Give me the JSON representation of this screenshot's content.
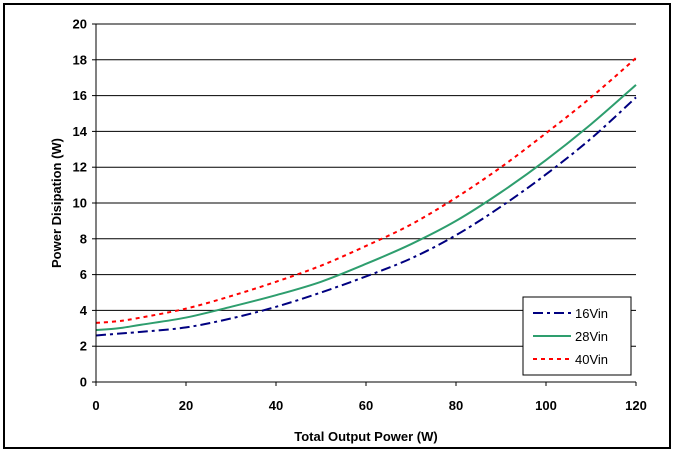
{
  "chart_data": {
    "type": "line",
    "title": "",
    "xlabel": "Total Output Power (W)",
    "ylabel": "Power Disipation (W)",
    "xlim": [
      0,
      120
    ],
    "ylim": [
      0,
      20
    ],
    "x_ticks": [
      "0",
      "20",
      "40",
      "60",
      "80",
      "100",
      "120"
    ],
    "y_ticks": [
      "0",
      "2",
      "4",
      "6",
      "8",
      "10",
      "12",
      "14",
      "16",
      "18",
      "20"
    ],
    "grid": "horizontal",
    "legend_position": "bottom-right",
    "series": [
      {
        "name": "16Vin",
        "color": "#000080",
        "style": "dash-dot",
        "x": [
          0,
          5,
          10,
          20,
          30,
          40,
          50,
          60,
          70,
          80,
          90,
          100,
          110,
          120
        ],
        "y": [
          2.6,
          2.7,
          2.8,
          3.05,
          3.55,
          4.2,
          5.0,
          5.9,
          6.9,
          8.2,
          9.8,
          11.6,
          13.6,
          15.9
        ]
      },
      {
        "name": "28Vin",
        "color": "#2e9e6e",
        "style": "solid",
        "x": [
          0,
          5,
          10,
          20,
          30,
          40,
          50,
          60,
          70,
          80,
          90,
          100,
          110,
          120
        ],
        "y": [
          2.9,
          3.0,
          3.2,
          3.6,
          4.2,
          4.85,
          5.6,
          6.6,
          7.7,
          9.0,
          10.6,
          12.4,
          14.4,
          16.6
        ]
      },
      {
        "name": "40Vin",
        "color": "#ff0000",
        "style": "dotted",
        "x": [
          0,
          5,
          10,
          20,
          30,
          40,
          50,
          60,
          70,
          80,
          90,
          100,
          110,
          120
        ],
        "y": [
          3.3,
          3.4,
          3.6,
          4.1,
          4.8,
          5.6,
          6.5,
          7.6,
          8.8,
          10.3,
          12.0,
          13.9,
          15.9,
          18.1
        ]
      }
    ]
  }
}
